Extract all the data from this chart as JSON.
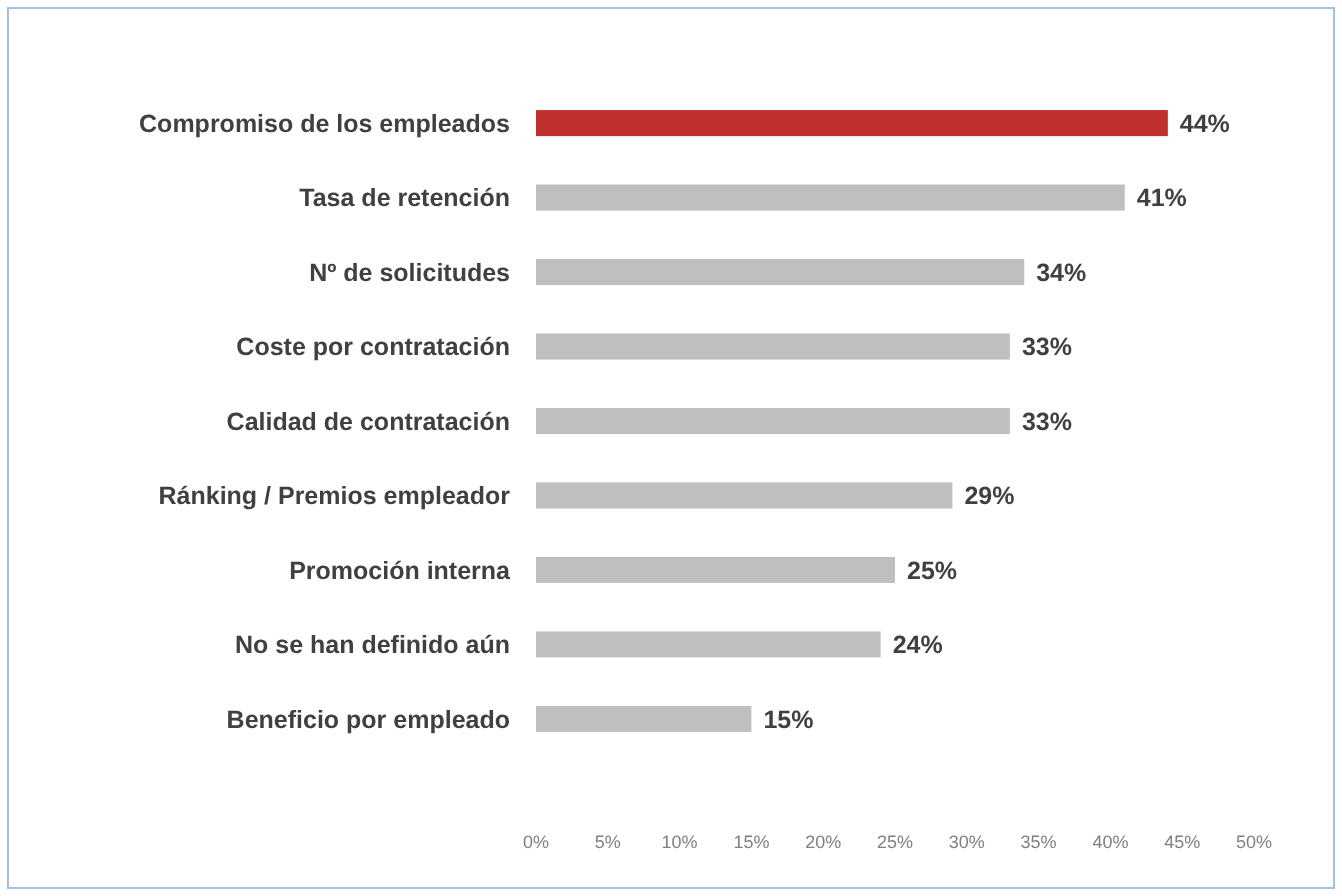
{
  "chart_data": {
    "type": "bar",
    "orientation": "horizontal",
    "categories": [
      "Compromiso de los empleados",
      "Tasa de retención",
      "Nº de solicitudes",
      "Coste por contratación",
      "Calidad de contratación",
      "Ránking / Premios empleador",
      "Promoción interna",
      "No se han definido aún",
      "Beneficio por empleado"
    ],
    "values": [
      44,
      41,
      34,
      33,
      33,
      29,
      25,
      24,
      15
    ],
    "colors": [
      "#c0302c",
      "#bfbfbf",
      "#bfbfbf",
      "#bfbfbf",
      "#bfbfbf",
      "#bfbfbf",
      "#bfbfbf",
      "#bfbfbf",
      "#bfbfbf"
    ],
    "value_labels": [
      "44%",
      "41%",
      "34%",
      "33%",
      "33%",
      "29%",
      "25%",
      "24%",
      "15%"
    ],
    "xlim": [
      0,
      50
    ],
    "xticks": [
      {
        "value": 0,
        "label": "0%"
      },
      {
        "value": 5,
        "label": "5%"
      },
      {
        "value": 10,
        "label": "10%"
      },
      {
        "value": 15,
        "label": "15%"
      },
      {
        "value": 20,
        "label": "20%"
      },
      {
        "value": 25,
        "label": "25%"
      },
      {
        "value": 30,
        "label": "30%"
      },
      {
        "value": 35,
        "label": "35%"
      },
      {
        "value": 40,
        "label": "40%"
      },
      {
        "value": 45,
        "label": "45%"
      },
      {
        "value": 50,
        "label": "50%"
      }
    ],
    "grid": false
  }
}
